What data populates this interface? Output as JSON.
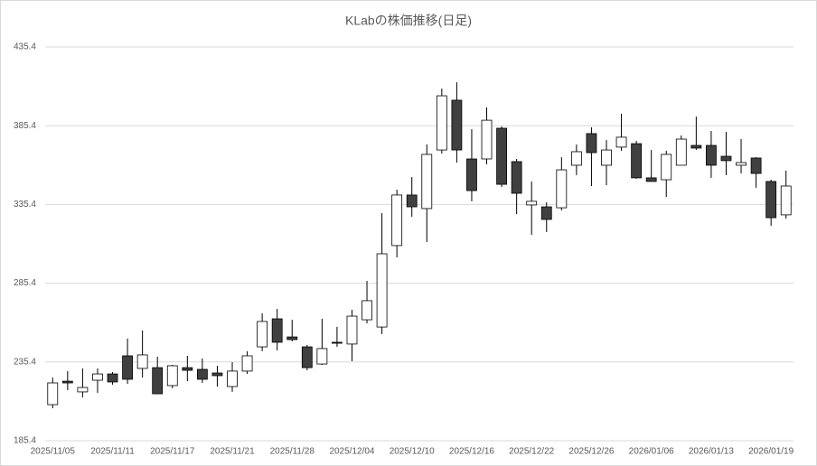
{
  "chart_data": {
    "type": "candlestick",
    "title": "KLabの株価推移(日足)",
    "categories": [
      "2025/11/05",
      null,
      null,
      null,
      "2025/11/11",
      null,
      null,
      null,
      "2025/11/17",
      null,
      null,
      null,
      "2025/11/21",
      null,
      null,
      null,
      "2025/11/28",
      null,
      null,
      null,
      "2025/12/04",
      null,
      null,
      null,
      "2025/12/10",
      null,
      null,
      null,
      "2025/12/16",
      null,
      null,
      null,
      "2025/12/22",
      null,
      null,
      null,
      "2025/12/26",
      null,
      null,
      null,
      "2026/01/06",
      null,
      null,
      null,
      "2026/01/13",
      null,
      null,
      null,
      "2026/01/19",
      null
    ],
    "open": [
      208.3,
      223.2,
      216.4,
      223.8,
      227.8,
      239.3,
      231.3,
      231.8,
      220.4,
      231.8,
      230.7,
      228.4,
      219.8,
      229.6,
      245.0,
      262.8,
      251.3,
      245.0,
      234.1,
      247.9,
      246.8,
      262.2,
      257.6,
      309.3,
      341.4,
      332.8,
      370.0,
      401.6,
      364.3,
      364.3,
      383.8,
      362.6,
      335.1,
      333.9,
      333.3,
      360.3,
      380.4,
      360.3,
      371.8,
      374.0,
      352.3,
      351.1,
      360.3,
      372.9,
      372.9,
      366.0,
      360.3,
      364.9,
      350.0,
      328.8
    ],
    "high": [
      225.5,
      229.6,
      231.3,
      231.3,
      229.0,
      250.2,
      255.4,
      238.7,
      233.6,
      239.3,
      237.6,
      233.0,
      235.3,
      242.2,
      266.3,
      269.1,
      262.2,
      246.2,
      262.8,
      257.7,
      268.5,
      286.9,
      329.9,
      344.8,
      352.8,
      373.5,
      409.0,
      413.0,
      383.2,
      397.0,
      385.0,
      364.3,
      350.0,
      336.8,
      365.4,
      373.5,
      384.4,
      376.3,
      393.0,
      375.8,
      370.0,
      369.5,
      379.2,
      391.2,
      382.1,
      381.5,
      376.9,
      365.4,
      351.1,
      356.9
    ],
    "low": [
      206.0,
      217.5,
      212.9,
      215.8,
      221.0,
      221.5,
      225.5,
      215.2,
      218.7,
      223.2,
      222.1,
      219.8,
      216.4,
      227.8,
      242.2,
      242.7,
      248.5,
      230.1,
      233.6,
      245.0,
      235.9,
      259.9,
      253.1,
      301.8,
      327.6,
      311.5,
      367.7,
      362.0,
      337.4,
      360.9,
      346.5,
      329.3,
      316.1,
      317.9,
      331.6,
      354.0,
      347.1,
      347.7,
      369.5,
      351.7,
      350.0,
      340.2,
      360.3,
      370.0,
      352.3,
      354.0,
      355.1,
      346.0,
      321.9,
      326.5
    ],
    "close": [
      222.1,
      222.1,
      219.2,
      227.8,
      222.7,
      224.4,
      239.9,
      215.2,
      233.0,
      230.1,
      224.4,
      226.7,
      229.6,
      239.3,
      261.1,
      247.9,
      249.6,
      231.8,
      243.9,
      247.3,
      264.5,
      274.3,
      304.1,
      341.4,
      333.9,
      367.2,
      404.4,
      370.0,
      344.2,
      388.9,
      348.2,
      342.5,
      337.4,
      325.9,
      357.4,
      368.9,
      368.3,
      370.0,
      378.1,
      352.3,
      350.0,
      367.2,
      376.9,
      371.2,
      360.3,
      363.2,
      362.0,
      355.1,
      327.0,
      347.1
    ],
    "up_color": "#ffffff",
    "down_color": "#404040",
    "ylim": [
      185.4,
      435.4
    ],
    "yticks": [
      185.4,
      235.4,
      285.4,
      335.4,
      385.4,
      435.4
    ],
    "grid": true
  }
}
